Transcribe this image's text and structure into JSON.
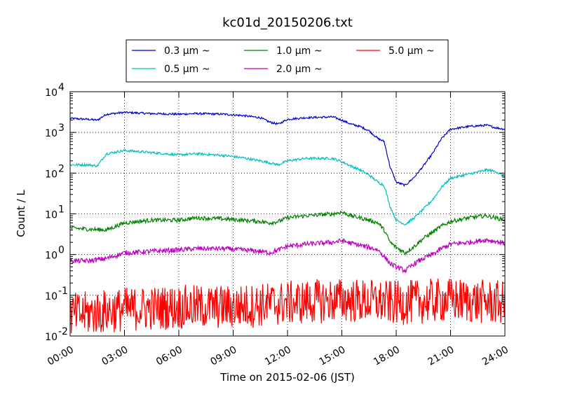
{
  "chart_data": {
    "type": "line",
    "title": "kc01d_20150206.txt",
    "xlabel": "Time on 2015-02-06 (JST)",
    "ylabel": "Count / L",
    "yscale": "log",
    "xlim": [
      "00:00",
      "24:00"
    ],
    "ylim": [
      0.01,
      10000
    ],
    "x_ticks": [
      "00:00",
      "03:00",
      "06:00",
      "09:00",
      "12:00",
      "15:00",
      "18:00",
      "21:00",
      "24:00"
    ],
    "y_ticks": [
      {
        "base": "10",
        "exp": "-2",
        "value": 0.01
      },
      {
        "base": "10",
        "exp": "-1",
        "value": 0.1
      },
      {
        "base": "10",
        "exp": "0",
        "value": 1
      },
      {
        "base": "10",
        "exp": "1",
        "value": 10
      },
      {
        "base": "10",
        "exp": "2",
        "value": 100
      },
      {
        "base": "10",
        "exp": "3",
        "value": 1000
      },
      {
        "base": "10",
        "exp": "4",
        "value": 10000
      }
    ],
    "grid": true,
    "legend": {
      "placement": "top-center",
      "columns": 3
    },
    "series": [
      {
        "name": "0.3 μm ~",
        "color": "#0000cc",
        "noise": 0.025,
        "x": [
          "00:00",
          "01:00",
          "01:30",
          "02:00",
          "03:00",
          "04:30",
          "06:00",
          "07:00",
          "08:30",
          "09:30",
          "10:30",
          "11:00",
          "11:30",
          "12:00",
          "13:00",
          "14:30",
          "15:00",
          "15:30",
          "16:00",
          "16:30",
          "17:00",
          "17:20",
          "17:40",
          "18:00",
          "18:30",
          "19:00",
          "19:30",
          "20:00",
          "20:30",
          "21:00",
          "22:00",
          "23:00",
          "23:30",
          "24:00"
        ],
        "y": [
          2200,
          2100,
          2000,
          2800,
          3100,
          2900,
          2800,
          2900,
          2800,
          2600,
          2300,
          1800,
          1600,
          2100,
          2300,
          2400,
          2000,
          1600,
          1400,
          1100,
          700,
          600,
          140,
          60,
          50,
          80,
          150,
          300,
          700,
          1200,
          1400,
          1500,
          1300,
          1200
        ]
      },
      {
        "name": "0.5 μm ~",
        "color": "#00bfbf",
        "noise": 0.03,
        "x": [
          "00:00",
          "01:00",
          "01:30",
          "02:00",
          "03:00",
          "04:30",
          "06:00",
          "07:00",
          "08:30",
          "09:30",
          "10:30",
          "11:00",
          "11:30",
          "12:00",
          "13:00",
          "14:30",
          "15:00",
          "15:30",
          "16:00",
          "16:30",
          "17:00",
          "17:20",
          "17:40",
          "18:00",
          "18:30",
          "19:00",
          "19:30",
          "20:00",
          "20:30",
          "21:00",
          "22:00",
          "23:00",
          "23:30",
          "24:00"
        ],
        "y": [
          160,
          160,
          150,
          300,
          360,
          320,
          280,
          300,
          270,
          240,
          200,
          180,
          160,
          200,
          230,
          230,
          190,
          150,
          120,
          90,
          60,
          50,
          15,
          7,
          5.5,
          8,
          13,
          22,
          45,
          75,
          95,
          120,
          110,
          80
        ]
      },
      {
        "name": "1.0 μm ~",
        "color": "#008000",
        "noise": 0.05,
        "x": [
          "00:00",
          "01:00",
          "02:00",
          "03:00",
          "04:30",
          "06:00",
          "07:00",
          "08:30",
          "09:30",
          "10:30",
          "11:00",
          "11:30",
          "12:00",
          "13:00",
          "14:30",
          "15:00",
          "15:30",
          "16:00",
          "16:30",
          "17:00",
          "17:20",
          "17:40",
          "18:00",
          "18:30",
          "19:00",
          "19:30",
          "20:00",
          "20:30",
          "21:00",
          "22:00",
          "23:00",
          "23:30",
          "24:00"
        ],
        "y": [
          4.5,
          4.2,
          4,
          6,
          7,
          7,
          8,
          7.5,
          7,
          6.5,
          6,
          6.5,
          8,
          9,
          10,
          11,
          9,
          8,
          7,
          6,
          4,
          2,
          1.5,
          1.1,
          1.6,
          2.5,
          3.5,
          5,
          6.5,
          8,
          9,
          8,
          7
        ]
      },
      {
        "name": "2.0 μm ~",
        "color": "#bf00bf",
        "noise": 0.06,
        "x": [
          "00:00",
          "01:00",
          "02:00",
          "03:00",
          "04:30",
          "06:00",
          "07:00",
          "08:30",
          "09:30",
          "10:30",
          "11:00",
          "11:30",
          "12:00",
          "13:00",
          "14:30",
          "15:00",
          "15:30",
          "16:00",
          "16:30",
          "17:00",
          "17:20",
          "17:40",
          "18:00",
          "18:30",
          "19:00",
          "19:30",
          "20:00",
          "20:30",
          "21:00",
          "22:00",
          "23:00",
          "23:30",
          "24:00"
        ],
        "y": [
          0.7,
          0.7,
          0.8,
          1.1,
          1.2,
          1.3,
          1.4,
          1.4,
          1.3,
          1.2,
          1.1,
          1.3,
          1.6,
          1.8,
          2,
          2.2,
          1.9,
          1.7,
          1.5,
          1.3,
          0.9,
          0.6,
          0.5,
          0.4,
          0.6,
          0.8,
          1,
          1.4,
          1.8,
          2,
          2.3,
          2.1,
          1.9
        ]
      },
      {
        "name": "5.0 μm ~",
        "color": "#ff0000",
        "noise": 0.3,
        "x": [
          "00:00",
          "03:00",
          "06:00",
          "09:00",
          "12:00",
          "15:00",
          "18:00",
          "21:00",
          "24:00"
        ],
        "y": [
          0.025,
          0.035,
          0.04,
          0.04,
          0.05,
          0.06,
          0.05,
          0.06,
          0.05
        ]
      }
    ]
  }
}
